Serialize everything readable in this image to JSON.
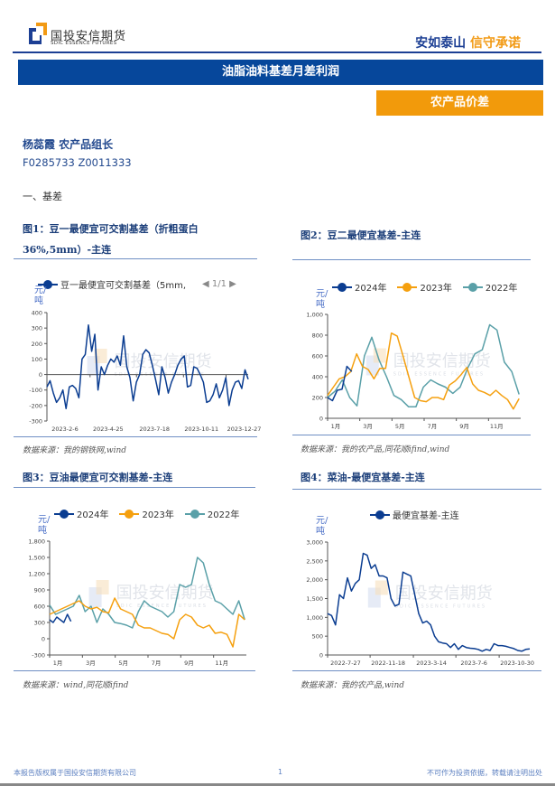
{
  "header": {
    "logo_cn": "国投安信期货",
    "logo_en": "SDIC ESSENCE FUTURES",
    "slogan_a": "安如泰山",
    "slogan_b": "信守承诺",
    "banner_title": "油脂油料基差月差利润",
    "tag": "农产品价差"
  },
  "author": {
    "name": "杨蕊霞  农产品组长",
    "ids": "F0285733  Z0011333"
  },
  "section": "一、基差",
  "colors": {
    "brand_blue": "#06479b",
    "accent_orange": "#f29a0b",
    "s2024": "#0b3d91",
    "s2023": "#f5a00f",
    "s2022": "#5aa0a8"
  },
  "watermark": {
    "cn": "国投安信期货",
    "en": "SDIC ESSENCE FUTURES"
  },
  "figures": [
    {
      "title_line1": "图1：豆一最便宜可交割基差（折粗蛋白",
      "title_line2": "36%,5mm）-主连",
      "unit": "元/吨",
      "legend": [
        "豆一最便宜可交割基差（5mm,"
      ],
      "pager": "1/1",
      "source": "数据来源：我的钢铁网,wind"
    },
    {
      "title_line1": "图2：豆二最便宜基差-主连",
      "unit": "元/吨",
      "legend": [
        "2024年",
        "2023年",
        "2022年"
      ],
      "source": "数据来源：我的农产品,同花顺ifind,wind"
    },
    {
      "title_line1": "图3：豆油最便宜可交割基差-主连",
      "unit": "元/吨",
      "legend": [
        "2024年",
        "2023年",
        "2022年"
      ],
      "source": "数据来源：wind,同花顺ifind"
    },
    {
      "title_line1": "图4：菜油-最便宜基差-主连",
      "unit": "元/吨",
      "legend": [
        "最便宜基差-主连"
      ],
      "source": "数据来源：我的农产品,wind"
    }
  ],
  "chart_data": [
    {
      "type": "line",
      "ylabel": "元/吨",
      "ylim": [
        -300,
        400
      ],
      "yticks": [
        400,
        300,
        200,
        100,
        0,
        -100,
        -200,
        -300
      ],
      "xlim": [
        "2023-02-06",
        "2024-02-05"
      ],
      "xticks": [
        "2023-2-6",
        "2023-4-25",
        "2023-7-18",
        "2023-10-11",
        "2023-12-27"
      ],
      "axis_at_zero": true,
      "series": [
        {
          "name": "豆一最便宜可交割基差（5mm,",
          "color": "#0b3d91",
          "values": [
            -80,
            -40,
            -120,
            -180,
            -150,
            -100,
            -220,
            -80,
            -70,
            -90,
            -150,
            100,
            130,
            320,
            150,
            260,
            -100,
            50,
            0,
            60,
            100,
            80,
            120,
            60,
            250,
            50,
            -20,
            -170,
            -50,
            0,
            130,
            160,
            140,
            60,
            -30,
            -130,
            50,
            -20,
            -120,
            -50,
            0,
            60,
            100,
            120,
            -80,
            -70,
            50,
            40,
            0,
            -50,
            -180,
            -170,
            -130,
            -60,
            -150,
            -100,
            -20,
            -200,
            -100,
            -50,
            -40,
            -90,
            30,
            -30
          ]
        }
      ]
    },
    {
      "type": "line",
      "ylabel": "元/吨",
      "ylim": [
        0,
        1000
      ],
      "yticks": [
        1000,
        800,
        600,
        400,
        200,
        0
      ],
      "xlim_months": [
        1,
        13
      ],
      "xticks": [
        "1月",
        "3月",
        "5月",
        "7月",
        "9月",
        "11月"
      ],
      "series": [
        {
          "name": "2022年",
          "color": "#5aa0a8",
          "x_range_months": [
            1,
            12.9
          ],
          "values": [
            200,
            260,
            370,
            200,
            120,
            600,
            780,
            560,
            400,
            220,
            180,
            110,
            110,
            300,
            370,
            330,
            300,
            240,
            300,
            480,
            620,
            660,
            900,
            850,
            540,
            450,
            230
          ]
        },
        {
          "name": "2023年",
          "color": "#f5a00f",
          "x_range_months": [
            1,
            12.9
          ],
          "values": [
            220,
            300,
            380,
            400,
            450,
            620,
            500,
            470,
            380,
            480,
            480,
            820,
            790,
            600,
            400,
            200,
            170,
            160,
            200,
            200,
            180,
            320,
            360,
            420,
            490,
            330,
            270,
            250,
            220,
            270,
            220,
            180,
            90,
            190
          ]
        },
        {
          "name": "2024年",
          "color": "#0b3d91",
          "x_range_months": [
            1,
            2.5
          ],
          "values": [
            200,
            170,
            270,
            280,
            500,
            450
          ]
        }
      ]
    },
    {
      "type": "line",
      "ylabel": "元/吨",
      "ylim": [
        -300,
        1800
      ],
      "yticks": [
        1800,
        1500,
        1200,
        900,
        600,
        300,
        0,
        -300
      ],
      "xlim_months": [
        1,
        13
      ],
      "xticks": [
        "1月",
        "3月",
        "5月",
        "7月",
        "9月",
        "11月"
      ],
      "series": [
        {
          "name": "2022年",
          "color": "#5aa0a8",
          "x_range_months": [
            1,
            12.9
          ],
          "values": [
            620,
            450,
            500,
            550,
            600,
            800,
            500,
            600,
            300,
            550,
            450,
            300,
            280,
            250,
            200,
            500,
            700,
            600,
            550,
            500,
            400,
            500,
            1000,
            950,
            1000,
            1500,
            1400,
            1000,
            700,
            650,
            550,
            450,
            700,
            350
          ]
        },
        {
          "name": "2023年",
          "color": "#f5a00f",
          "x_range_months": [
            1,
            12.9
          ],
          "values": [
            450,
            500,
            550,
            600,
            650,
            700,
            600,
            550,
            580,
            500,
            480,
            750,
            550,
            500,
            450,
            250,
            200,
            200,
            150,
            100,
            80,
            0,
            350,
            450,
            400,
            250,
            200,
            250,
            100,
            120,
            80,
            -150,
            450,
            350
          ]
        },
        {
          "name": "2024年",
          "color": "#0b3d91",
          "x_range_months": [
            1,
            2.3
          ],
          "values": [
            350,
            300,
            400,
            350,
            300,
            450,
            320
          ]
        }
      ]
    },
    {
      "type": "line",
      "ylabel": "元/吨",
      "ylim": [
        0,
        3000
      ],
      "yticks": [
        3000,
        2500,
        2000,
        1500,
        1000,
        500,
        0
      ],
      "xlim": [
        "2022-07-27",
        "2024-01-20"
      ],
      "xticks": [
        "2022-7-27",
        "2022-11-18",
        "2023-3-14",
        "2023-7-6",
        "2023-10-30"
      ],
      "series": [
        {
          "name": "最便宜基差-主连",
          "color": "#0b3d91",
          "values": [
            1100,
            1050,
            800,
            1600,
            1500,
            2050,
            1700,
            1900,
            2000,
            2700,
            2650,
            2300,
            2400,
            2100,
            2100,
            2050,
            1500,
            1300,
            1350,
            2200,
            2150,
            2100,
            1600,
            1100,
            850,
            900,
            800,
            500,
            350,
            320,
            300,
            200,
            300,
            150,
            250,
            200,
            180,
            170,
            150,
            100,
            150,
            120,
            300,
            250,
            250,
            230,
            200,
            170,
            120,
            100,
            150,
            160
          ]
        }
      ]
    }
  ],
  "footer": {
    "left": "本报告版权属于国投安信期货有限公司",
    "page": "1",
    "right": "不可作为投资依据，转载请注明出处"
  }
}
